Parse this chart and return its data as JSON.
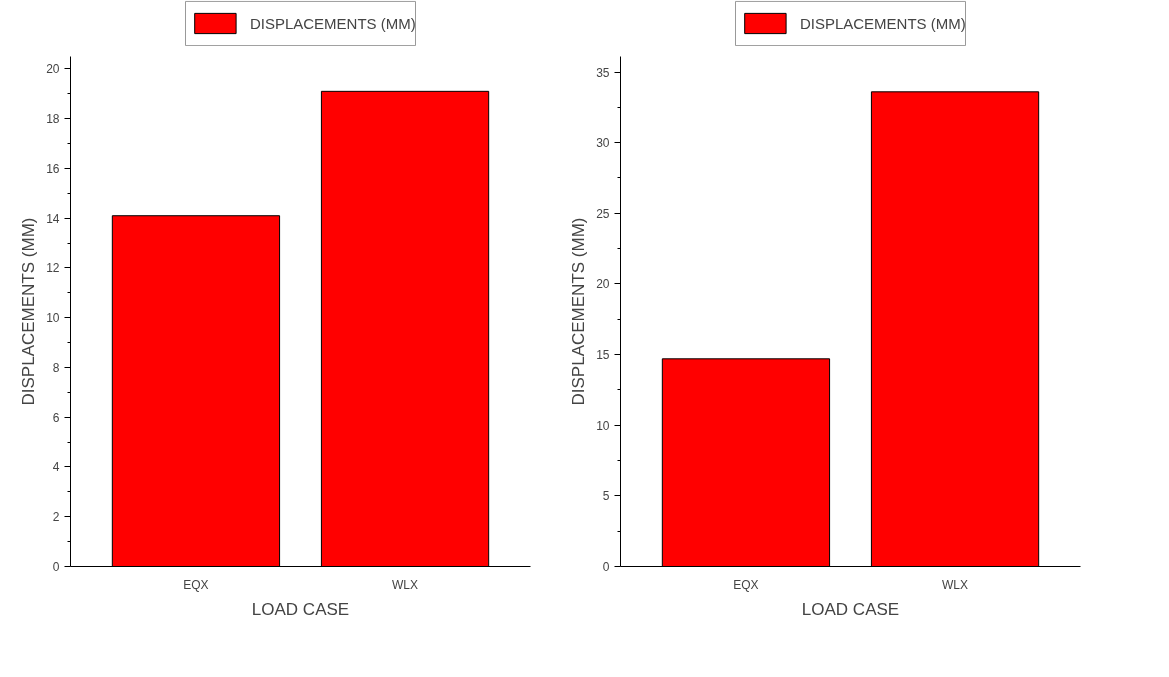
{
  "chart_data": [
    {
      "type": "bar",
      "xlabel": "LOAD CASE",
      "ylabel": "DISPLACEMENTS (MM)",
      "categories": [
        "EQX",
        "WLX"
      ],
      "series": [
        {
          "name": "DISPLACEMENTS (MM)",
          "color": "#ff0000",
          "values": [
            14.1,
            19.1
          ]
        }
      ],
      "ylim": [
        0,
        20.5
      ],
      "yticks": [
        0,
        2,
        4,
        6,
        8,
        10,
        12,
        14,
        16,
        18,
        20
      ],
      "grid": false,
      "legend": "top"
    },
    {
      "type": "bar",
      "xlabel": "LOAD CASE",
      "ylabel": "DISPLACEMENTS (MM)",
      "categories": [
        "EQX",
        "WLX"
      ],
      "series": [
        {
          "name": "DISPLACEMENTS (MM)",
          "color": "#ff0000",
          "values": [
            14.7,
            33.6
          ]
        }
      ],
      "ylim": [
        0,
        36.1
      ],
      "yticks": [
        0,
        5,
        10,
        15,
        20,
        25,
        30,
        35
      ],
      "grid": false,
      "legend": "top"
    }
  ]
}
